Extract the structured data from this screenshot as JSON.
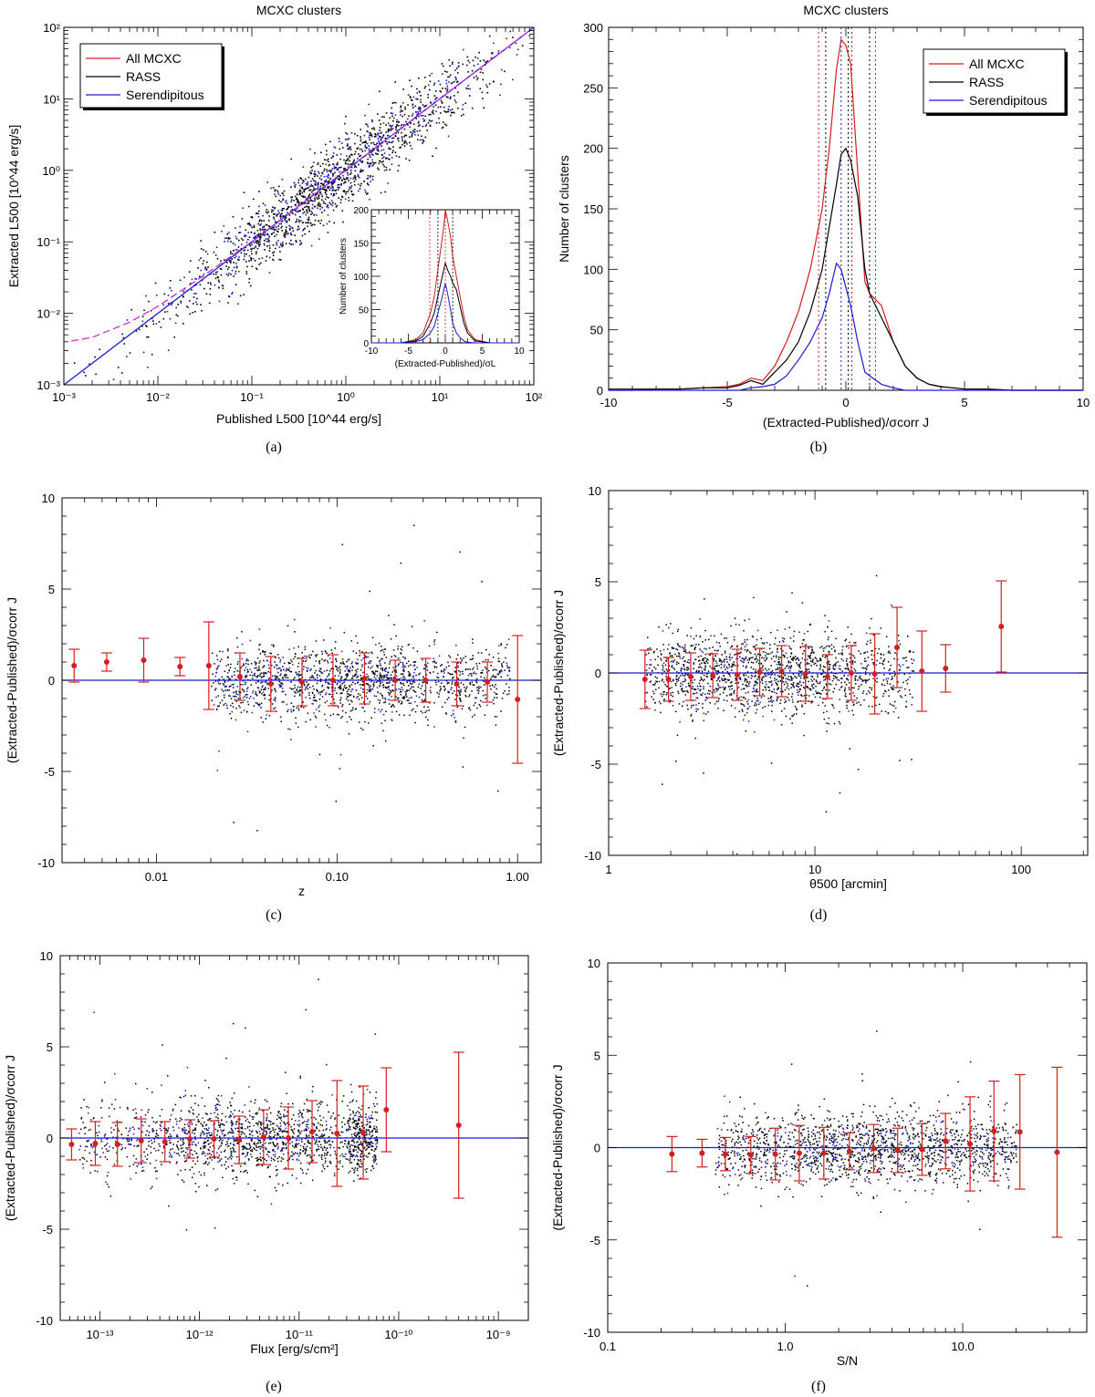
{
  "colors": {
    "all": "#d21f1f",
    "rass": "#000000",
    "serendipitous": "#1a1ad6",
    "fit": "#d12bd1",
    "zero": "#1a1ad6"
  },
  "chart_data": [
    {
      "id": "a",
      "type": "scatter",
      "title": "MCXC clusters",
      "xlabel": "Published L500 [10^44 erg/s]",
      "ylabel": "Extracted L500 [10^44 erg/s]",
      "xscale": "log",
      "yscale": "log",
      "xlim": [
        0.001,
        100
      ],
      "ylim": [
        0.001,
        100
      ],
      "x_ticks": [
        "10⁻³",
        "10⁻²",
        "10⁻¹",
        "10⁰",
        "10¹",
        "10²"
      ],
      "y_ticks": [
        "10⁻³",
        "10⁻²",
        "10⁻¹",
        "10⁰",
        "10¹",
        "10²"
      ],
      "legend": [
        "All MCXC",
        "RASS",
        "Serendipitous"
      ],
      "legend_position": "top-left",
      "caption": "(a)",
      "scatter": {
        "n": 1700,
        "center_log": -0.2,
        "spread_log": 0.85,
        "scatter_log": 0.25
      },
      "lines": [
        {
          "name": "one-to-one",
          "color_key": "serendipitous",
          "dash": "",
          "points": [
            [
              0.001,
              0.001
            ],
            [
              100,
              100
            ]
          ]
        },
        {
          "name": "fit",
          "color_key": "fit",
          "dash": "8,4",
          "points": [
            [
              0.0012,
              0.0041
            ],
            [
              0.002,
              0.0046
            ],
            [
              0.005,
              0.0075
            ],
            [
              0.01,
              0.0125
            ],
            [
              0.03,
              0.033
            ],
            [
              0.1,
              0.1
            ],
            [
              1,
              1
            ],
            [
              10,
              10
            ],
            [
              100,
              100
            ]
          ]
        }
      ],
      "inset": {
        "xlabel": "(Extracted-Published)/σL",
        "ylabel": "Number of clusters",
        "xlim": [
          -10,
          10
        ],
        "ylim": [
          0,
          200
        ],
        "x_ticks": [
          -10,
          -5,
          0,
          5,
          10
        ],
        "y_ticks": [
          0,
          50,
          100,
          150,
          200
        ],
        "x": [
          -10,
          -8,
          -6,
          -4,
          -3,
          -2,
          -1.5,
          -1,
          -0.5,
          -0.2,
          0,
          0.3,
          0.7,
          1,
          1.5,
          2,
          2.5,
          3,
          4,
          6,
          8,
          10
        ],
        "series": [
          {
            "name": "All MCXC",
            "values": [
              0,
              0,
              0,
              5,
              15,
              45,
              70,
              110,
              150,
              175,
              200,
              185,
              160,
              130,
              100,
              70,
              40,
              20,
              5,
              0,
              0,
              0
            ]
          },
          {
            "name": "RASS",
            "values": [
              0,
              0,
              0,
              3,
              10,
              30,
              45,
              70,
              95,
              110,
              120,
              110,
              100,
              90,
              80,
              55,
              30,
              15,
              3,
              0,
              0,
              0
            ]
          },
          {
            "name": "Serendipitous",
            "values": [
              0,
              0,
              0,
              2,
              5,
              15,
              25,
              45,
              65,
              80,
              90,
              75,
              50,
              30,
              15,
              8,
              3,
              1,
              0,
              0,
              0,
              0
            ]
          }
        ],
        "vlines": [
          -2.1,
          -1.0,
          0,
          1.0
        ]
      }
    },
    {
      "id": "b",
      "type": "line",
      "title": "MCXC clusters",
      "xlabel": "(Extracted-Published)/σcorr J",
      "ylabel": "Number of clusters",
      "xlim": [
        -10,
        10
      ],
      "ylim": [
        0,
        300
      ],
      "x_ticks": [
        -10,
        -5,
        0,
        5,
        10
      ],
      "y_ticks": [
        0,
        50,
        100,
        150,
        200,
        250,
        300
      ],
      "legend": [
        "All MCXC",
        "RASS",
        "Serendipitous"
      ],
      "legend_position": "top-right",
      "caption": "(b)",
      "x": [
        -10,
        -9,
        -8,
        -7,
        -6,
        -5,
        -4.5,
        -4,
        -3.5,
        -3,
        -2.5,
        -2,
        -1.5,
        -1,
        -0.7,
        -0.4,
        -0.2,
        0,
        0.2,
        0.5,
        0.8,
        1,
        1.5,
        2,
        2.5,
        3,
        3.5,
        4,
        4.5,
        5,
        6,
        7,
        8,
        9,
        10
      ],
      "series": [
        {
          "name": "All MCXC",
          "color_key": "all",
          "values": [
            0,
            0,
            1,
            1,
            2,
            3,
            5,
            10,
            8,
            20,
            40,
            65,
            100,
            150,
            200,
            265,
            290,
            285,
            270,
            180,
            90,
            80,
            70,
            40,
            20,
            10,
            5,
            3,
            2,
            1,
            1,
            0,
            0,
            0,
            0
          ]
        },
        {
          "name": "RASS",
          "color_key": "rass",
          "values": [
            1,
            1,
            1,
            1,
            2,
            2,
            4,
            8,
            5,
            15,
            25,
            40,
            65,
            100,
            135,
            170,
            195,
            200,
            190,
            160,
            100,
            80,
            60,
            40,
            20,
            10,
            5,
            3,
            2,
            1,
            1,
            0,
            0,
            0,
            0
          ]
        },
        {
          "name": "Serendipitous",
          "color_key": "serendipitous",
          "values": [
            0,
            0,
            0,
            0,
            0,
            0,
            0,
            2,
            3,
            5,
            12,
            25,
            40,
            60,
            80,
            105,
            100,
            85,
            70,
            40,
            15,
            12,
            5,
            2,
            0,
            0,
            0,
            0,
            0,
            0,
            0,
            0,
            0,
            0,
            0
          ]
        }
      ],
      "vlines": [
        {
          "x": -1.15,
          "color_key": "all"
        },
        {
          "x": -0.85,
          "color_key": "rass"
        },
        {
          "x": -0.2,
          "color_key": "serendipitous"
        },
        {
          "x": 0.1,
          "color_key": "rass"
        },
        {
          "x": 0.25,
          "color_key": "all"
        },
        {
          "x": 1.0,
          "color_key": "rass"
        },
        {
          "x": 1.25,
          "color_key": "all"
        }
      ]
    },
    {
      "id": "c",
      "type": "scatter",
      "xlabel": "z",
      "ylabel": "(Extracted-Published)/σcorr J",
      "xscale": "log",
      "xlim": [
        0.003,
        1.35
      ],
      "ylim": [
        -10,
        10
      ],
      "x_ticks": [
        {
          "v": 0.01,
          "label": "0.01"
        },
        {
          "v": 0.1,
          "label": "0.10"
        },
        {
          "v": 1,
          "label": "1.00"
        }
      ],
      "y_ticks": [
        -10,
        -5,
        0,
        5,
        10
      ],
      "caption": "(c)",
      "scatter": {
        "n": 1600,
        "xmin": 0.02,
        "xmax": 0.9,
        "xcenter": 0.12,
        "sd": 1.0,
        "blue_frac": 0.35
      },
      "bins": {
        "x": [
          0.0035,
          0.0053,
          0.0085,
          0.0135,
          0.0195,
          0.029,
          0.043,
          0.064,
          0.095,
          0.142,
          0.21,
          0.31,
          0.46,
          0.68,
          1.0
        ],
        "y": [
          0.8,
          1.0,
          1.1,
          0.75,
          0.8,
          0.2,
          -0.2,
          -0.1,
          0.0,
          0.1,
          0.0,
          0.0,
          -0.2,
          -0.1,
          -1.05
        ],
        "err": [
          0.9,
          0.5,
          1.2,
          0.5,
          2.4,
          1.3,
          1.5,
          1.3,
          1.4,
          1.4,
          1.1,
          1.2,
          1.2,
          1.1,
          3.5
        ]
      }
    },
    {
      "id": "d",
      "type": "scatter",
      "xlabel": "θ500 [arcmin]",
      "ylabel": "(Extracted-Published)/σcorr J",
      "xscale": "log",
      "xlim": [
        1,
        210
      ],
      "ylim": [
        -10,
        10
      ],
      "x_ticks": [
        {
          "v": 1,
          "label": "1"
        },
        {
          "v": 10,
          "label": "10"
        },
        {
          "v": 100,
          "label": "100"
        }
      ],
      "y_ticks": [
        -10,
        -5,
        0,
        5,
        10
      ],
      "caption": "(d)",
      "scatter": {
        "n": 1600,
        "xmin": 1.5,
        "xmax": 30,
        "xcenter": 6.0,
        "sd": 1.1,
        "blue_frac": 0.3
      },
      "bins": {
        "x": [
          1.5,
          1.95,
          2.5,
          3.2,
          4.2,
          5.4,
          6.9,
          9.0,
          11.5,
          15,
          19.5,
          25,
          33,
          43,
          80
        ],
        "y": [
          -0.35,
          -0.35,
          -0.2,
          -0.15,
          -0.1,
          0.05,
          0.1,
          -0.05,
          -0.2,
          0.0,
          -0.05,
          1.4,
          0.1,
          0.25,
          2.55
        ],
        "err": [
          1.6,
          1.2,
          1.3,
          1.2,
          1.4,
          1.3,
          1.4,
          1.5,
          1.2,
          1.5,
          2.2,
          2.2,
          2.2,
          1.3,
          2.5
        ]
      }
    },
    {
      "id": "e",
      "type": "scatter",
      "xlabel": "Flux [erg/s/cm²]",
      "ylabel": "(Extracted-Published)/σcorr J",
      "xscale": "log",
      "xlim": [
        4e-14,
        2e-09
      ],
      "ylim": [
        -10,
        10
      ],
      "x_ticks": [
        {
          "v": 1e-13,
          "label": "10⁻¹³"
        },
        {
          "v": 1e-12,
          "label": "10⁻¹²"
        },
        {
          "v": 1e-11,
          "label": "10⁻¹¹"
        },
        {
          "v": 1e-10,
          "label": "10⁻¹⁰"
        },
        {
          "v": 1e-09,
          "label": "10⁻⁹"
        }
      ],
      "y_ticks": [
        -10,
        -5,
        0,
        5,
        10
      ],
      "caption": "(e)",
      "scatter": {
        "n": 1700,
        "xmin": 6e-14,
        "xmax": 6e-11,
        "xcenter": 4e-12,
        "sd": 1.0,
        "blue_frac": 0.35
      },
      "bins": {
        "x": [
          5.2e-14,
          9e-14,
          1.5e-13,
          2.6e-13,
          4.5e-13,
          8e-13,
          1.4e-12,
          2.5e-12,
          4.4e-12,
          7.8e-12,
          1.35e-11,
          2.4e-11,
          4.4e-11,
          7.5e-11,
          4e-10
        ],
        "y": [
          -0.35,
          -0.3,
          -0.35,
          -0.15,
          -0.2,
          -0.05,
          -0.05,
          -0.1,
          0.05,
          0.0,
          0.35,
          0.25,
          0.3,
          1.55,
          0.7
        ],
        "err": [
          0.85,
          1.2,
          1.2,
          1.2,
          1.1,
          1.05,
          1.0,
          1.3,
          1.5,
          1.7,
          1.7,
          2.9,
          2.55,
          2.3,
          4.0
        ]
      }
    },
    {
      "id": "f",
      "type": "scatter",
      "xlabel": "S/N",
      "ylabel": "(Extracted-Published)/σcorr J",
      "xscale": "log",
      "xlim": [
        0.1,
        50
      ],
      "ylim": [
        -10,
        10
      ],
      "x_ticks": [
        {
          "v": 0.1,
          "label": "0.1"
        },
        {
          "v": 1,
          "label": "1.0"
        },
        {
          "v": 10,
          "label": "10.0"
        }
      ],
      "y_ticks": [
        -10,
        -5,
        0,
        5,
        10
      ],
      "caption": "(f)",
      "scatter": {
        "n": 1700,
        "xmin": 0.4,
        "xmax": 20,
        "xcenter": 3.0,
        "sd": 1.0,
        "blue_frac": 0.3
      },
      "bins": {
        "x": [
          0.23,
          0.34,
          0.46,
          0.64,
          0.88,
          1.2,
          1.65,
          2.3,
          3.15,
          4.3,
          5.9,
          8.0,
          11,
          15,
          21,
          34
        ],
        "y": [
          -0.35,
          -0.3,
          -0.35,
          -0.4,
          -0.35,
          -0.3,
          -0.3,
          -0.2,
          -0.05,
          -0.15,
          -0.1,
          0.35,
          0.2,
          0.9,
          0.85,
          -0.25
        ],
        "err": [
          0.95,
          0.75,
          0.9,
          1.0,
          1.4,
          1.5,
          1.4,
          1.0,
          1.3,
          1.2,
          1.4,
          1.5,
          2.55,
          2.7,
          3.1,
          4.6
        ]
      }
    }
  ]
}
